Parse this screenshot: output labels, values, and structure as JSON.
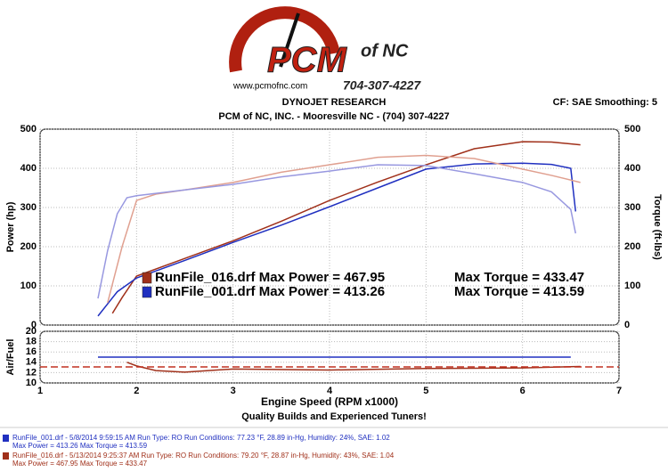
{
  "header": {
    "logo_name": "PCM",
    "logo_suffix": "of NC",
    "logo_phone": "704-307-4227",
    "logo_url": "www.pcmofnc.com",
    "title": "DYNOJET RESEARCH",
    "subtitle": "PCM of NC, INC. - Mooresville NC - (704) 307-4227",
    "settings": "CF: SAE  Smoothing: 5"
  },
  "chart_data": [
    {
      "type": "line",
      "y_label": "Power (hp)",
      "y2_label": "Torque (ft-lbs)",
      "xlim": [
        1,
        7
      ],
      "xticks": [
        1,
        2,
        3,
        4,
        5,
        6,
        7
      ],
      "ylim": [
        0,
        500
      ],
      "yticks": [
        0,
        100,
        200,
        300,
        400,
        500
      ],
      "y2lim": [
        0,
        500
      ],
      "y2ticks": [
        0,
        100,
        200,
        300,
        400,
        500
      ],
      "series": [
        {
          "name": "RunFile_016.drf",
          "color": "#a0301a",
          "annotation_power": "Max Power = 467.95",
          "annotation_torque": "Max Torque = 433.47",
          "x": [
            1.75,
            1.85,
            2,
            2.5,
            3,
            3.5,
            4,
            4.5,
            5,
            5.5,
            6,
            6.3,
            6.6
          ],
          "values": [
            30,
            70,
            125,
            170,
            215,
            265,
            318,
            365,
            409,
            450,
            468,
            467,
            460
          ]
        },
        {
          "name": "RunFile_001.drf",
          "color": "#2030c0",
          "annotation_power": "Max Power = 413.26",
          "annotation_torque": "Max Torque = 413.59",
          "x": [
            1.6,
            1.8,
            2,
            2.5,
            3,
            3.5,
            4,
            4.5,
            5,
            5.5,
            6,
            6.3,
            6.5,
            6.55
          ],
          "values": [
            23,
            85,
            120,
            165,
            211,
            255,
            302,
            350,
            398,
            411,
            413,
            410,
            400,
            290
          ]
        },
        {
          "axis": "y2",
          "color": "#e0a090",
          "x": [
            1.7,
            1.85,
            2,
            2.2,
            2.5,
            3,
            3.5,
            4,
            4.5,
            5,
            5.5,
            6,
            6.3,
            6.6
          ],
          "values": [
            57,
            200,
            318,
            334,
            345,
            364,
            390,
            409,
            428,
            433,
            425,
            398,
            382,
            364
          ]
        },
        {
          "axis": "y2",
          "color": "#9898e0",
          "x": [
            1.6,
            1.7,
            1.8,
            1.9,
            2,
            2.5,
            3,
            3.5,
            4,
            4.5,
            5,
            5.5,
            6,
            6.3,
            6.5,
            6.55
          ],
          "values": [
            68,
            190,
            284,
            325,
            330,
            345,
            359,
            378,
            393,
            409,
            407,
            386,
            364,
            340,
            295,
            234
          ]
        }
      ]
    },
    {
      "type": "line",
      "y_label": "Air/Fuel",
      "x_label": "Engine Speed (RPM x1000)",
      "xlim": [
        1,
        7
      ],
      "xticks": [
        1,
        2,
        3,
        4,
        5,
        6,
        7
      ],
      "ylim": [
        10,
        20
      ],
      "yticks": [
        10,
        12,
        14,
        16,
        18,
        20
      ],
      "series": [
        {
          "color": "#2030c0",
          "x": [
            1.6,
            6.5
          ],
          "values": [
            15,
            15
          ]
        },
        {
          "color": "#a0301a",
          "x": [
            1.9,
            2,
            2.2,
            2.5,
            3,
            4,
            5,
            6,
            6.6
          ],
          "values": [
            14,
            13.3,
            12.4,
            12.1,
            12.7,
            12.5,
            12.8,
            12.9,
            13.2
          ]
        },
        {
          "color": "#c03020",
          "dashed": true,
          "x": [
            1,
            7
          ],
          "values": [
            13.1,
            13.1
          ]
        }
      ]
    }
  ],
  "footer": {
    "tagline": "Quality Builds and Experienced Tuners!",
    "runs": [
      {
        "color": "#2030c0",
        "line1": "RunFile_001.drf - 5/8/2014 9:59:15 AM  Run Type: RO  Run Conditions: 77.23 °F, 28.89 in-Hg,  Humidity:  24%, SAE: 1.02",
        "line2": "Max Power = 413.26  Max Torque = 413.59"
      },
      {
        "color": "#a0301a",
        "line1": "RunFile_016.drf - 5/13/2014 9:25:37 AM  Run Type: RO  Run Conditions: 79.20 °F, 28.87 in-Hg,  Humidity:  43%, SAE: 1.04",
        "line2": "Max Power = 467.95  Max Torque = 433.47"
      }
    ]
  }
}
